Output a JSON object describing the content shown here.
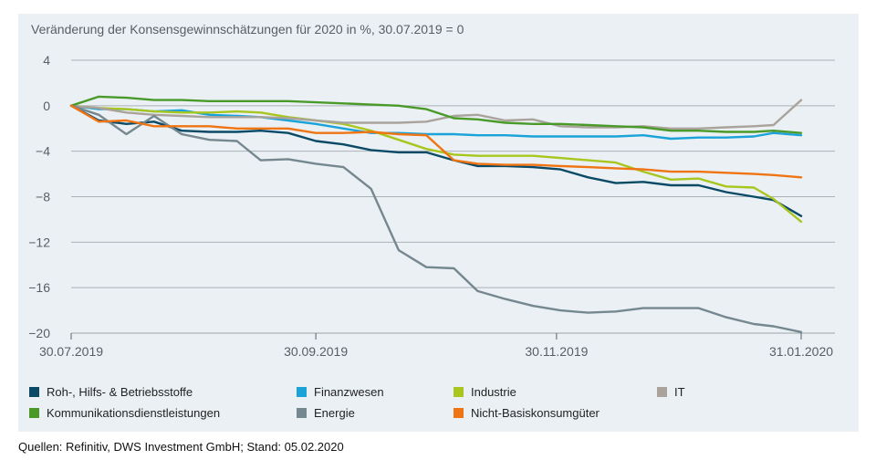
{
  "chart_data": {
    "type": "line",
    "title": "Veränderung der Konsensgewinnschätzungen für 2020 in %, 30.07.2019 = 0",
    "xlabel": "",
    "ylabel": "",
    "x_range": [
      "2019-07-30",
      "2020-01-31"
    ],
    "ylim": [
      -20,
      4
    ],
    "y_ticks": [
      4,
      0,
      -4,
      -8,
      -12,
      -16,
      -20
    ],
    "y_tick_labels": [
      "4",
      "0",
      "−4",
      "−8",
      "−12",
      "−16",
      "−20"
    ],
    "x_ticks": [
      "2019-07-30",
      "2019-09-30",
      "2019-11-30",
      "2020-01-31"
    ],
    "x_tick_labels": [
      "30.07.2019",
      "30.09.2019",
      "30.11.2019",
      "31.01.2020"
    ],
    "grid": "horizontal",
    "legend_position": "bottom",
    "series": [
      {
        "name": "Roh-, Hilfs- & Betriebsstoffe",
        "color": "#0b4a66",
        "points": [
          [
            "2019-07-30",
            0
          ],
          [
            "2019-08-06",
            -1.3
          ],
          [
            "2019-08-13",
            -1.6
          ],
          [
            "2019-08-20",
            -1.4
          ],
          [
            "2019-08-27",
            -2.2
          ],
          [
            "2019-09-03",
            -2.3
          ],
          [
            "2019-09-10",
            -2.3
          ],
          [
            "2019-09-16",
            -2.2
          ],
          [
            "2019-09-23",
            -2.4
          ],
          [
            "2019-09-30",
            -3.1
          ],
          [
            "2019-10-07",
            -3.4
          ],
          [
            "2019-10-14",
            -3.9
          ],
          [
            "2019-10-21",
            -4.1
          ],
          [
            "2019-10-28",
            -4.1
          ],
          [
            "2019-11-04",
            -4.8
          ],
          [
            "2019-11-10",
            -5.3
          ],
          [
            "2019-11-17",
            -5.3
          ],
          [
            "2019-11-24",
            -5.4
          ],
          [
            "2019-12-01",
            -5.6
          ],
          [
            "2019-12-08",
            -6.3
          ],
          [
            "2019-12-15",
            -6.8
          ],
          [
            "2019-12-22",
            -6.7
          ],
          [
            "2019-12-29",
            -7.0
          ],
          [
            "2020-01-05",
            -7.0
          ],
          [
            "2020-01-12",
            -7.6
          ],
          [
            "2020-01-19",
            -8.0
          ],
          [
            "2020-01-24",
            -8.3
          ],
          [
            "2020-01-31",
            -9.7
          ]
        ]
      },
      {
        "name": "Finanzwesen",
        "color": "#1aa3d8",
        "points": [
          [
            "2019-07-30",
            0
          ],
          [
            "2019-08-06",
            -0.3
          ],
          [
            "2019-08-13",
            -0.3
          ],
          [
            "2019-08-20",
            -0.5
          ],
          [
            "2019-08-27",
            -0.4
          ],
          [
            "2019-09-03",
            -0.8
          ],
          [
            "2019-09-10",
            -0.9
          ],
          [
            "2019-09-16",
            -1.0
          ],
          [
            "2019-09-23",
            -1.3
          ],
          [
            "2019-09-30",
            -1.6
          ],
          [
            "2019-10-07",
            -2.0
          ],
          [
            "2019-10-14",
            -2.4
          ],
          [
            "2019-10-21",
            -2.4
          ],
          [
            "2019-10-28",
            -2.5
          ],
          [
            "2019-11-04",
            -2.5
          ],
          [
            "2019-11-10",
            -2.6
          ],
          [
            "2019-11-17",
            -2.6
          ],
          [
            "2019-11-24",
            -2.7
          ],
          [
            "2019-12-01",
            -2.7
          ],
          [
            "2019-12-08",
            -2.7
          ],
          [
            "2019-12-15",
            -2.7
          ],
          [
            "2019-12-22",
            -2.6
          ],
          [
            "2019-12-29",
            -2.9
          ],
          [
            "2020-01-05",
            -2.8
          ],
          [
            "2020-01-12",
            -2.8
          ],
          [
            "2020-01-19",
            -2.7
          ],
          [
            "2020-01-24",
            -2.4
          ],
          [
            "2020-01-31",
            -2.6
          ]
        ]
      },
      {
        "name": "Industrie",
        "color": "#a8c61e",
        "points": [
          [
            "2019-07-30",
            0
          ],
          [
            "2019-08-06",
            -0.2
          ],
          [
            "2019-08-13",
            -0.3
          ],
          [
            "2019-08-20",
            -0.5
          ],
          [
            "2019-08-27",
            -0.6
          ],
          [
            "2019-09-03",
            -0.6
          ],
          [
            "2019-09-10",
            -0.5
          ],
          [
            "2019-09-16",
            -0.6
          ],
          [
            "2019-09-23",
            -1.0
          ],
          [
            "2019-09-30",
            -1.3
          ],
          [
            "2019-10-07",
            -1.6
          ],
          [
            "2019-10-14",
            -2.2
          ],
          [
            "2019-10-21",
            -3.0
          ],
          [
            "2019-10-28",
            -3.8
          ],
          [
            "2019-11-04",
            -4.3
          ],
          [
            "2019-11-10",
            -4.4
          ],
          [
            "2019-11-17",
            -4.4
          ],
          [
            "2019-11-24",
            -4.4
          ],
          [
            "2019-12-01",
            -4.6
          ],
          [
            "2019-12-08",
            -4.8
          ],
          [
            "2019-12-15",
            -5.0
          ],
          [
            "2019-12-22",
            -5.8
          ],
          [
            "2019-12-29",
            -6.5
          ],
          [
            "2020-01-05",
            -6.4
          ],
          [
            "2020-01-12",
            -7.1
          ],
          [
            "2020-01-19",
            -7.2
          ],
          [
            "2020-01-24",
            -8.2
          ],
          [
            "2020-01-31",
            -10.2
          ]
        ]
      },
      {
        "name": "IT",
        "color": "#aaa39b",
        "points": [
          [
            "2019-07-30",
            0
          ],
          [
            "2019-08-06",
            -0.2
          ],
          [
            "2019-08-13",
            -0.6
          ],
          [
            "2019-08-20",
            -0.8
          ],
          [
            "2019-08-27",
            -0.9
          ],
          [
            "2019-09-03",
            -1.0
          ],
          [
            "2019-09-10",
            -1.0
          ],
          [
            "2019-09-16",
            -1.0
          ],
          [
            "2019-09-23",
            -1.1
          ],
          [
            "2019-09-30",
            -1.3
          ],
          [
            "2019-10-07",
            -1.5
          ],
          [
            "2019-10-14",
            -1.5
          ],
          [
            "2019-10-21",
            -1.5
          ],
          [
            "2019-10-28",
            -1.4
          ],
          [
            "2019-11-04",
            -0.9
          ],
          [
            "2019-11-10",
            -0.8
          ],
          [
            "2019-11-17",
            -1.3
          ],
          [
            "2019-11-24",
            -1.2
          ],
          [
            "2019-12-01",
            -1.8
          ],
          [
            "2019-12-08",
            -1.9
          ],
          [
            "2019-12-15",
            -1.9
          ],
          [
            "2019-12-22",
            -1.8
          ],
          [
            "2019-12-29",
            -2.0
          ],
          [
            "2020-01-05",
            -2.0
          ],
          [
            "2020-01-12",
            -1.9
          ],
          [
            "2020-01-19",
            -1.8
          ],
          [
            "2020-01-24",
            -1.7
          ],
          [
            "2020-01-31",
            0.5
          ]
        ]
      },
      {
        "name": "Kommunikationsdienstleistungen",
        "color": "#4a9a2a",
        "points": [
          [
            "2019-07-30",
            0
          ],
          [
            "2019-08-06",
            0.8
          ],
          [
            "2019-08-13",
            0.7
          ],
          [
            "2019-08-20",
            0.5
          ],
          [
            "2019-08-27",
            0.5
          ],
          [
            "2019-09-03",
            0.4
          ],
          [
            "2019-09-10",
            0.4
          ],
          [
            "2019-09-16",
            0.4
          ],
          [
            "2019-09-23",
            0.4
          ],
          [
            "2019-09-30",
            0.3
          ],
          [
            "2019-10-07",
            0.2
          ],
          [
            "2019-10-14",
            0.1
          ],
          [
            "2019-10-21",
            0.0
          ],
          [
            "2019-10-28",
            -0.3
          ],
          [
            "2019-11-04",
            -1.1
          ],
          [
            "2019-11-10",
            -1.2
          ],
          [
            "2019-11-17",
            -1.5
          ],
          [
            "2019-11-24",
            -1.6
          ],
          [
            "2019-12-01",
            -1.6
          ],
          [
            "2019-12-08",
            -1.7
          ],
          [
            "2019-12-15",
            -1.8
          ],
          [
            "2019-12-22",
            -1.9
          ],
          [
            "2019-12-29",
            -2.2
          ],
          [
            "2020-01-05",
            -2.2
          ],
          [
            "2020-01-12",
            -2.3
          ],
          [
            "2020-01-19",
            -2.3
          ],
          [
            "2020-01-24",
            -2.2
          ],
          [
            "2020-01-31",
            -2.4
          ]
        ]
      },
      {
        "name": "Energie",
        "color": "#75878f",
        "points": [
          [
            "2019-07-30",
            0
          ],
          [
            "2019-08-06",
            -0.8
          ],
          [
            "2019-08-13",
            -2.5
          ],
          [
            "2019-08-20",
            -0.9
          ],
          [
            "2019-08-27",
            -2.5
          ],
          [
            "2019-09-03",
            -3.0
          ],
          [
            "2019-09-10",
            -3.1
          ],
          [
            "2019-09-16",
            -4.8
          ],
          [
            "2019-09-23",
            -4.7
          ],
          [
            "2019-09-30",
            -5.1
          ],
          [
            "2019-10-07",
            -5.4
          ],
          [
            "2019-10-14",
            -7.3
          ],
          [
            "2019-10-21",
            -12.7
          ],
          [
            "2019-10-28",
            -14.2
          ],
          [
            "2019-11-04",
            -14.3
          ],
          [
            "2019-11-10",
            -16.3
          ],
          [
            "2019-11-17",
            -17.0
          ],
          [
            "2019-11-24",
            -17.6
          ],
          [
            "2019-12-01",
            -18.0
          ],
          [
            "2019-12-08",
            -18.2
          ],
          [
            "2019-12-15",
            -18.1
          ],
          [
            "2019-12-22",
            -17.8
          ],
          [
            "2019-12-29",
            -17.8
          ],
          [
            "2020-01-05",
            -17.8
          ],
          [
            "2020-01-12",
            -18.6
          ],
          [
            "2020-01-19",
            -19.2
          ],
          [
            "2020-01-24",
            -19.4
          ],
          [
            "2020-01-31",
            -19.9
          ]
        ]
      },
      {
        "name": "Nicht-Basiskonsumgüter",
        "color": "#ef7414",
        "points": [
          [
            "2019-07-30",
            0
          ],
          [
            "2019-08-06",
            -1.4
          ],
          [
            "2019-08-13",
            -1.3
          ],
          [
            "2019-08-20",
            -1.8
          ],
          [
            "2019-08-27",
            -1.8
          ],
          [
            "2019-09-03",
            -1.8
          ],
          [
            "2019-09-10",
            -2.0
          ],
          [
            "2019-09-16",
            -2.0
          ],
          [
            "2019-09-23",
            -2.0
          ],
          [
            "2019-09-30",
            -2.4
          ],
          [
            "2019-10-07",
            -2.4
          ],
          [
            "2019-10-14",
            -2.3
          ],
          [
            "2019-10-21",
            -2.5
          ],
          [
            "2019-10-28",
            -2.6
          ],
          [
            "2019-11-04",
            -4.8
          ],
          [
            "2019-11-10",
            -5.1
          ],
          [
            "2019-11-17",
            -5.2
          ],
          [
            "2019-11-24",
            -5.2
          ],
          [
            "2019-12-01",
            -5.3
          ],
          [
            "2019-12-08",
            -5.4
          ],
          [
            "2019-12-15",
            -5.5
          ],
          [
            "2019-12-22",
            -5.6
          ],
          [
            "2019-12-29",
            -5.8
          ],
          [
            "2020-01-05",
            -5.8
          ],
          [
            "2020-01-12",
            -5.9
          ],
          [
            "2020-01-19",
            -6.0
          ],
          [
            "2020-01-24",
            -6.1
          ],
          [
            "2020-01-31",
            -6.3
          ]
        ]
      }
    ]
  },
  "legend": [
    {
      "label": "Roh-, Hilfs- & Betriebsstoffe",
      "color": "#0b4a66"
    },
    {
      "label": "Finanzwesen",
      "color": "#1aa3d8"
    },
    {
      "label": "Industrie",
      "color": "#a8c61e"
    },
    {
      "label": "IT",
      "color": "#aaa39b"
    },
    {
      "label": "Kommunikationsdienstleistungen",
      "color": "#4a9a2a"
    },
    {
      "label": "Energie",
      "color": "#75878f"
    },
    {
      "label": "Nicht-Basiskonsumgüter",
      "color": "#ef7414"
    }
  ],
  "footer": {
    "source": "Quellen: Refinitiv, DWS Investment GmbH; Stand: 05.02.2020"
  },
  "colors": {
    "panel": "#ebf0f4",
    "gridline": "#a9b2b7",
    "axis": "#555f66"
  }
}
